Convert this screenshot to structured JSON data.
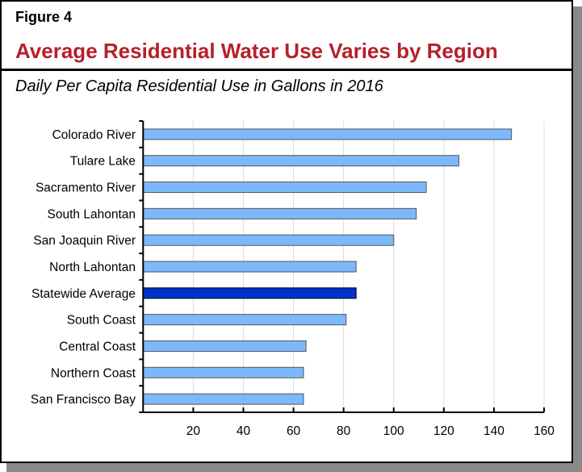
{
  "figure_label": "Figure 4",
  "title": "Average Residential Water Use Varies by Region",
  "colors": {
    "bar": "#7cb9fc",
    "highlight": "#0033cc",
    "title": "#b5202a"
  },
  "chart_data": {
    "type": "bar",
    "orientation": "horizontal",
    "title": "Daily Per Capita Residential Use in Gallons in 2016",
    "categories": [
      "Colorado River",
      "Tulare Lake",
      "Sacramento River",
      "South Lahontan",
      "San Joaquin River",
      "North Lahontan",
      "Statewide Average",
      "South Coast",
      "Central Coast",
      "Northern Coast",
      "San Francisco Bay"
    ],
    "values": [
      147,
      126,
      113,
      109,
      100,
      85,
      85,
      81,
      65,
      64,
      64
    ],
    "highlight": "Statewide Average",
    "xlim": [
      0,
      160
    ],
    "xticks": [
      20,
      40,
      60,
      80,
      100,
      120,
      140,
      160
    ],
    "grid": true,
    "xlabel": "",
    "ylabel": ""
  }
}
